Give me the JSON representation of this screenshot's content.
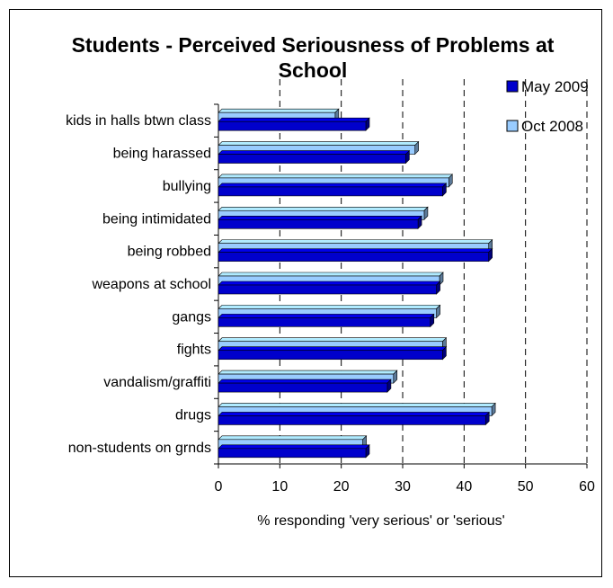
{
  "chart_data": {
    "type": "bar",
    "orientation": "horizontal",
    "title": "Students - Perceived Seriousness of Problems at School",
    "xlabel": "% responding 'very serious' or 'serious'",
    "ylabel": "",
    "xlim": [
      0,
      60
    ],
    "xticks": [
      "0",
      "10",
      "20",
      "30",
      "40",
      "50",
      "60"
    ],
    "grid": "vertical dashed",
    "legend_position": "top-right",
    "categories": [
      "kids in halls btwn class",
      "being harassed",
      "bullying",
      "being intimidated",
      "being robbed",
      "weapons at school",
      "gangs",
      "fights",
      "vandalism/graffiti",
      "drugs",
      "non-students on grnds"
    ],
    "series": [
      {
        "name": "May 2009",
        "color": "#0000CC",
        "values": [
          24,
          30.5,
          36.5,
          32.5,
          44,
          35.5,
          34.5,
          36.5,
          27.5,
          43.5,
          24
        ]
      },
      {
        "name": "Oct 2008",
        "color": "#99CCFF",
        "values": [
          19,
          32,
          37.5,
          33.5,
          44,
          36,
          35.5,
          36.5,
          28.5,
          44.5,
          23.5
        ]
      }
    ]
  }
}
